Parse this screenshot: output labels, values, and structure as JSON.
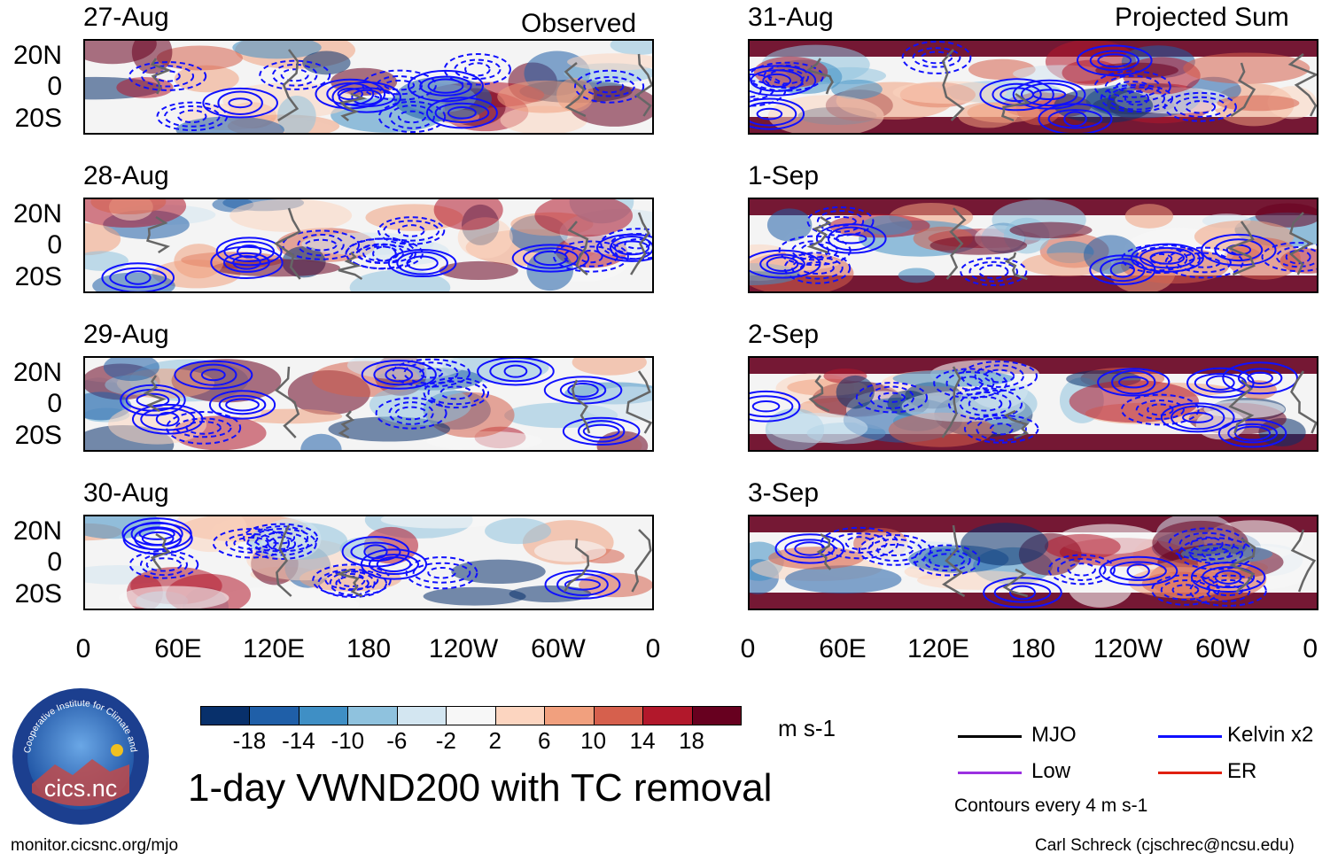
{
  "columns": {
    "left_header": "Observed",
    "right_header": "Projected Sum"
  },
  "left_panels": [
    {
      "date": "27-Aug",
      "seed": 1
    },
    {
      "date": "28-Aug",
      "seed": 2
    },
    {
      "date": "29-Aug",
      "seed": 3
    },
    {
      "date": "30-Aug",
      "seed": 4
    }
  ],
  "right_panels": [
    {
      "date": "31-Aug",
      "seed": 5
    },
    {
      "date": "1-Sep",
      "seed": 6
    },
    {
      "date": "2-Sep",
      "seed": 7
    },
    {
      "date": "3-Sep",
      "seed": 8
    }
  ],
  "lat_labels": [
    "20N",
    "0",
    "20S"
  ],
  "lon_labels": [
    "0",
    "60E",
    "120E",
    "180",
    "120W",
    "60W",
    "0"
  ],
  "colorbar": {
    "colors": [
      "#08306b",
      "#1f5fa8",
      "#3f8fc5",
      "#8fc2de",
      "#d3e6f1",
      "#f7f7f7",
      "#fcd5c0",
      "#f1a07e",
      "#d6604d",
      "#b2182b",
      "#67001f"
    ],
    "ticks": [
      "-18",
      "-14",
      "-10",
      "-6",
      "-2",
      "2",
      "6",
      "10",
      "14",
      "18"
    ],
    "units": "m s-1"
  },
  "title": "1-day VWND200 with TC removal",
  "logo": {
    "text": "cics.nc",
    "arc_text": "Cooperative Institute for Climate and Satellites"
  },
  "legend": {
    "items": [
      {
        "label": "MJO",
        "color": "#000000"
      },
      {
        "label": "Kelvin x2",
        "color": "#1010ff"
      },
      {
        "label": "Low",
        "color": "#9a30e0"
      },
      {
        "label": "ER",
        "color": "#e02010"
      }
    ],
    "contour_note": "Contours every 4 m s-1"
  },
  "footer": {
    "left": "monitor.cicsnc.org/mjo",
    "right": "Carl Schreck (cjschrec@ncsu.edu)"
  }
}
